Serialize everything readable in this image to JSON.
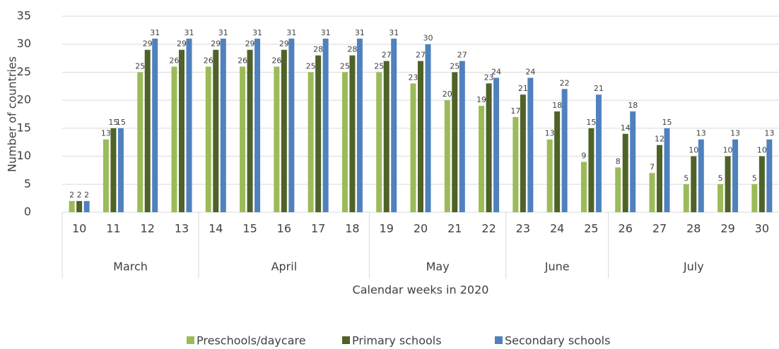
{
  "chart_data": {
    "type": "bar",
    "y_label": "Number of countries",
    "x_label": "Calendar weeks in 2020",
    "categories": [
      "10",
      "11",
      "12",
      "13",
      "14",
      "15",
      "16",
      "17",
      "18",
      "19",
      "20",
      "21",
      "22",
      "23",
      "24",
      "25",
      "26",
      "27",
      "28",
      "29",
      "30"
    ],
    "group_labels": [
      "March",
      null,
      null,
      null,
      "April",
      null,
      null,
      null,
      null,
      "May",
      null,
      null,
      null,
      "June",
      null,
      null,
      "July",
      null,
      null,
      null,
      null
    ],
    "series": [
      {
        "name": "Preschools/daycare",
        "color": "#9bbb59",
        "values": [
          2,
          13,
          25,
          26,
          26,
          26,
          26,
          25,
          25,
          25,
          23,
          20,
          19,
          17,
          13,
          9,
          8,
          7,
          5,
          5,
          5
        ]
      },
      {
        "name": "Primary schools",
        "color": "#4f6228",
        "values": [
          2,
          15,
          29,
          29,
          29,
          29,
          29,
          28,
          28,
          27,
          27,
          25,
          23,
          21,
          18,
          15,
          14,
          12,
          10,
          10,
          10
        ]
      },
      {
        "name": "Secondary schools",
        "color": "#4f81bd",
        "values": [
          2,
          15,
          31,
          31,
          31,
          31,
          31,
          31,
          31,
          31,
          30,
          27,
          24,
          24,
          22,
          21,
          18,
          15,
          13,
          13,
          13
        ]
      }
    ],
    "ylim": [
      0,
      35
    ],
    "yticks": [
      0,
      5,
      10,
      15,
      20,
      25,
      30,
      35
    ],
    "grid": true,
    "legend": "bottom"
  }
}
